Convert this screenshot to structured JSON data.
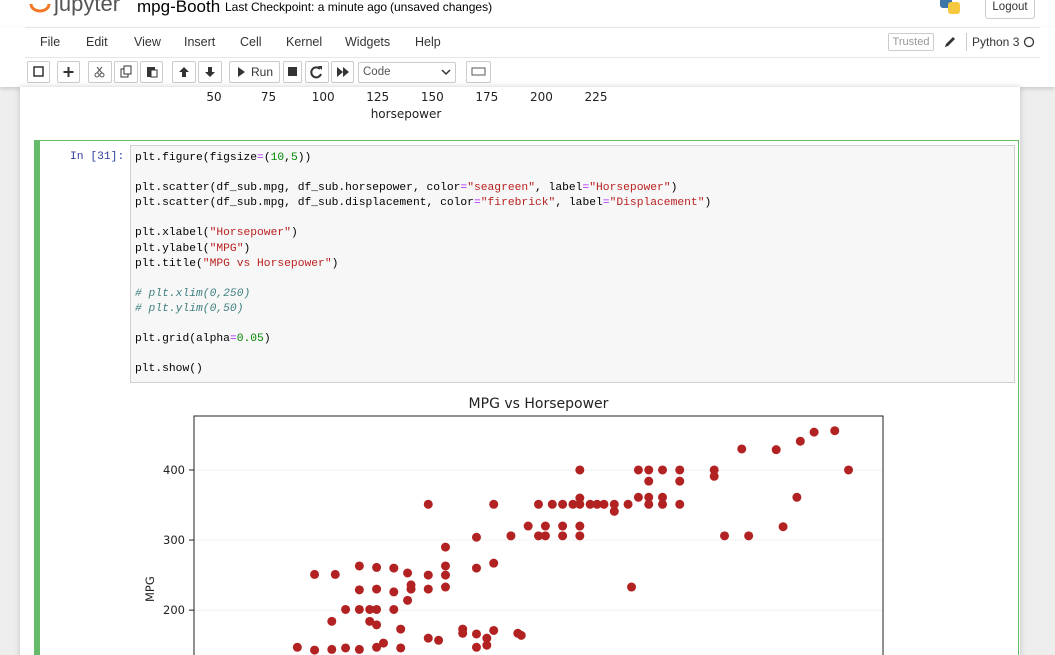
{
  "header": {
    "logo_text": "jupyter",
    "notebook_name": "mpg-Booth",
    "checkpoint": "Last Checkpoint: a minute ago",
    "status": "(unsaved changes)",
    "logout": "Logout"
  },
  "menu": {
    "items": [
      "File",
      "Edit",
      "View",
      "Insert",
      "Cell",
      "Kernel",
      "Widgets",
      "Help"
    ],
    "trusted": "Trusted",
    "kernel": "Python 3"
  },
  "toolbar": {
    "run": "Run",
    "cell_type": "Code"
  },
  "previous_output": {
    "xticks": [
      50,
      75,
      100,
      125,
      150,
      175,
      200,
      225
    ],
    "xlabel": "horsepower"
  },
  "cell": {
    "prompt": "In [31]:",
    "code_blocks": [
      [
        "plt.figure(figsize=(10,5))"
      ],
      [
        "plt.scatter(df_sub.mpg, df_sub.horsepower, color=\"seagreen\", label=\"Horsepower\")",
        "plt.scatter(df_sub.mpg, df_sub.displacement, color=\"firebrick\", label=\"Displacement\")"
      ],
      [
        "plt.xlabel(\"Horsepower\")",
        "plt.ylabel(\"MPG\")",
        "plt.title(\"MPG vs Horsepower\")"
      ],
      [
        "# plt.xlim(0,250)",
        "# plt.ylim(0,50)"
      ],
      [
        "plt.grid(alpha=0.05)"
      ],
      [
        "plt.show()"
      ]
    ]
  },
  "chart_data": {
    "type": "scatter",
    "title": "MPG vs Horsepower",
    "ylabel": "MPG",
    "xlim": [
      40,
      240
    ],
    "ylim": [
      136,
      477
    ],
    "yticks": [
      200,
      300,
      400
    ],
    "grid": true,
    "series": [
      {
        "color": "#b22222",
        "x": [
          226,
          220,
          216,
          199,
          209,
          230,
          191,
          191,
          181,
          176,
          172,
          169,
          152,
          172,
          181,
          215,
          176,
          172,
          169,
          172,
          176,
          181,
          166,
          162,
          159,
          157,
          155,
          152,
          150,
          147,
          144,
          140,
          127,
          108,
          162,
          152,
          152,
          147,
          142,
          137,
          132,
          142,
          140,
          147,
          152,
          194,
          201,
          211,
          122,
          113,
          127,
          122,
          167,
          75,
          81,
          88,
          93,
          98,
          102,
          103,
          108,
          113,
          113,
          113,
          108,
          103,
          98,
          93,
          88,
          102,
          98,
          93,
          91,
          88,
          84,
          80,
          91,
          93,
          100,
          108,
          111,
          118,
          122,
          125,
          127,
          134,
          135,
          125,
          122,
          118,
          70,
          75,
          80,
          84,
          88,
          93,
          95,
          100
        ],
        "values": [
          456,
          454,
          441,
          430,
          429,
          400,
          400,
          391,
          400,
          400,
          400,
          400,
          400,
          384,
          384,
          361,
          361,
          361,
          361,
          351,
          351,
          351,
          351,
          351,
          351,
          351,
          351,
          351,
          351,
          351,
          351,
          351,
          351,
          351,
          341,
          360,
          320,
          320,
          320,
          320,
          306,
          306,
          306,
          306,
          306,
          306,
          306,
          319,
          304,
          290,
          267,
          260,
          233,
          251,
          251,
          263,
          261,
          260,
          253,
          236,
          250,
          263,
          250,
          233,
          230,
          230,
          226,
          230,
          229,
          214,
          201,
          201,
          201,
          201,
          201,
          184,
          184,
          179,
          173,
          160,
          157,
          173,
          166,
          160,
          171,
          167,
          164,
          150,
          147,
          167,
          147,
          143,
          144,
          146,
          144,
          147,
          153,
          146
        ]
      }
    ]
  }
}
